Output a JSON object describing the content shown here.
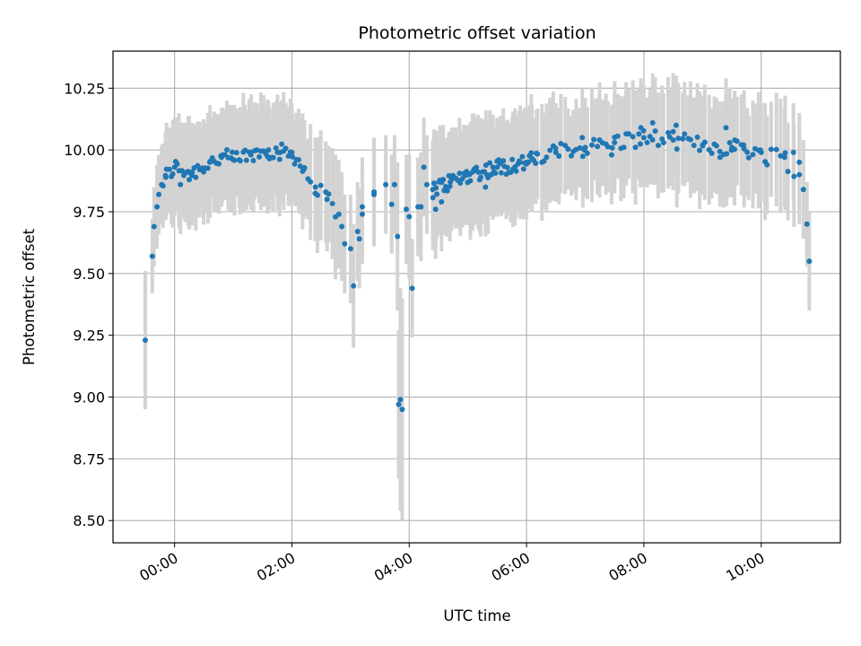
{
  "chart_data": {
    "type": "scatter",
    "title": "Photometric offset variation",
    "xlabel": "UTC time",
    "ylabel": "Photometric offset",
    "x_unit": "hours UTC",
    "xlim": [
      -1.05,
      11.35
    ],
    "ylim": [
      8.41,
      10.4
    ],
    "x_ticks": [
      {
        "value": 0,
        "label": "00:00"
      },
      {
        "value": 2,
        "label": "02:00"
      },
      {
        "value": 4,
        "label": "04:00"
      },
      {
        "value": 6,
        "label": "06:00"
      },
      {
        "value": 8,
        "label": "08:00"
      },
      {
        "value": 10,
        "label": "10:00"
      }
    ],
    "y_ticks": [
      {
        "value": 8.5,
        "label": "8.50"
      },
      {
        "value": 8.75,
        "label": "8.75"
      },
      {
        "value": 9.0,
        "label": "9.00"
      },
      {
        "value": 9.25,
        "label": "9.25"
      },
      {
        "value": 9.5,
        "label": "9.50"
      },
      {
        "value": 9.75,
        "label": "9.75"
      },
      {
        "value": 10.0,
        "label": "10.00"
      },
      {
        "value": 10.25,
        "label": "10.25"
      }
    ],
    "grid": true,
    "colors": {
      "points": "#1f77b4",
      "error_bars": "#d3d3d3",
      "grid": "#b0b0b0"
    },
    "anchor_points": [
      [
        -0.5,
        9.23,
        0.28
      ],
      [
        -0.38,
        9.57,
        0.15
      ],
      [
        -0.35,
        9.69,
        0.16
      ],
      [
        -0.3,
        9.77,
        0.17
      ],
      [
        -0.27,
        9.82,
        0.16
      ],
      [
        -0.22,
        9.86,
        0.16
      ],
      [
        -0.15,
        9.89,
        0.17
      ],
      [
        0.0,
        9.93,
        0.2
      ],
      [
        0.3,
        9.91,
        0.2
      ],
      [
        0.6,
        9.95,
        0.2
      ],
      [
        0.8,
        9.97,
        0.2
      ],
      [
        1.0,
        9.96,
        0.2
      ],
      [
        1.3,
        9.98,
        0.2
      ],
      [
        1.6,
        10.0,
        0.2
      ],
      [
        1.8,
        9.99,
        0.2
      ],
      [
        2.0,
        9.99,
        0.2
      ],
      [
        2.2,
        9.92,
        0.2
      ],
      [
        2.4,
        9.85,
        0.2
      ],
      [
        2.6,
        9.8,
        0.21
      ],
      [
        2.8,
        9.74,
        0.22
      ],
      [
        3.0,
        9.6,
        0.22
      ],
      [
        3.2,
        9.77,
        0.2
      ],
      [
        3.4,
        9.82,
        0.2
      ],
      [
        3.6,
        9.86,
        0.2
      ],
      [
        3.8,
        9.65,
        0.3
      ],
      [
        4.0,
        9.73,
        0.25
      ],
      [
        4.2,
        9.77,
        0.22
      ],
      [
        4.4,
        9.84,
        0.2
      ],
      [
        4.7,
        9.87,
        0.2
      ],
      [
        5.0,
        9.9,
        0.2
      ],
      [
        5.5,
        9.93,
        0.2
      ],
      [
        6.0,
        9.95,
        0.2
      ],
      [
        6.5,
        9.99,
        0.2
      ],
      [
        7.0,
        10.01,
        0.2
      ],
      [
        7.5,
        10.03,
        0.2
      ],
      [
        8.0,
        10.05,
        0.2
      ],
      [
        8.5,
        10.04,
        0.2
      ],
      [
        9.0,
        10.02,
        0.2
      ],
      [
        9.5,
        10.01,
        0.2
      ],
      [
        10.0,
        9.99,
        0.2
      ],
      [
        10.4,
        9.97,
        0.2
      ],
      [
        10.65,
        9.9,
        0.2
      ],
      [
        10.72,
        9.84,
        0.2
      ],
      [
        10.78,
        9.7,
        0.17
      ],
      [
        10.82,
        9.55,
        0.2
      ]
    ],
    "outliers": [
      [
        0.1,
        9.86,
        0.2
      ],
      [
        0.25,
        9.88,
        0.2
      ],
      [
        2.85,
        9.69,
        0.22
      ],
      [
        2.9,
        9.62,
        0.2
      ],
      [
        3.05,
        9.45,
        0.25
      ],
      [
        3.12,
        9.67,
        0.2
      ],
      [
        3.15,
        9.64,
        0.2
      ],
      [
        3.2,
        9.74,
        0.2
      ],
      [
        3.4,
        9.83,
        0.22
      ],
      [
        3.7,
        9.78,
        0.2
      ],
      [
        3.75,
        9.86,
        0.2
      ],
      [
        3.82,
        8.97,
        0.3
      ],
      [
        3.85,
        8.99,
        0.45
      ],
      [
        3.88,
        8.95,
        0.45
      ],
      [
        3.95,
        9.76,
        0.22
      ],
      [
        4.05,
        9.44,
        0.2
      ],
      [
        4.15,
        9.77,
        0.2
      ],
      [
        4.25,
        9.93,
        0.2
      ],
      [
        4.3,
        9.86,
        0.2
      ],
      [
        4.45,
        9.76,
        0.2
      ],
      [
        4.55,
        9.79,
        0.2
      ],
      [
        5.3,
        9.85,
        0.2
      ],
      [
        6.95,
        10.05,
        0.2
      ],
      [
        7.45,
        9.98,
        0.2
      ],
      [
        7.95,
        10.09,
        0.2
      ],
      [
        8.15,
        10.11,
        0.2
      ],
      [
        8.55,
        10.1,
        0.2
      ],
      [
        9.3,
        9.97,
        0.2
      ],
      [
        9.4,
        10.09,
        0.2
      ],
      [
        9.55,
        10.04,
        0.2
      ],
      [
        9.7,
        10.02,
        0.2
      ],
      [
        10.1,
        9.94,
        0.2
      ],
      [
        10.55,
        9.99,
        0.2
      ],
      [
        10.65,
        9.95,
        0.2
      ]
    ]
  }
}
